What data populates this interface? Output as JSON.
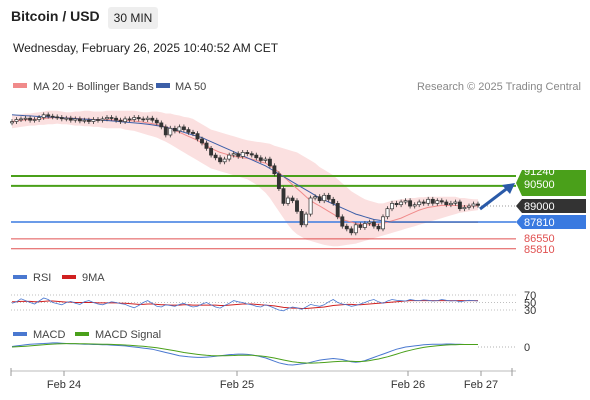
{
  "header": {
    "title": "Bitcoin / USD",
    "timeframe": "30 MIN",
    "datetime": "Wednesday, February 26, 2025 10:40:52 AM CET"
  },
  "legend": {
    "ma20_label": "MA 20 + Bollinger Bands",
    "ma50_label": "MA 50",
    "credit": "Research © 2025 Trading Central"
  },
  "colors": {
    "bollinger_fill": "#fbe0e0",
    "ma20": "#f08a8a",
    "ma50": "#3c5fa8",
    "green_level": "#4aa01a",
    "blue_level": "#3a7ae0",
    "red_level": "#e05050",
    "current_price": "#333333",
    "arrow": "#2a5aa8",
    "rsi": "#4a78d0",
    "rsi_ma": "#d02020",
    "macd": "#4a78d0",
    "macd_signal": "#4aa01a",
    "candle": "#333333"
  },
  "chart_data": [
    {
      "type": "candlestick",
      "name": "price",
      "x_ticks": [
        "Feb 24",
        "Feb 25",
        "Feb 26",
        "Feb 27"
      ],
      "ylim": [
        85000,
        93000
      ],
      "levels": [
        {
          "value": 91240,
          "label": "91240",
          "kind": "resistance",
          "style": "green"
        },
        {
          "value": 90500,
          "label": "90500",
          "kind": "resistance",
          "style": "green"
        },
        {
          "value": 89000,
          "label": "89000",
          "kind": "current",
          "style": "dark"
        },
        {
          "value": 87810,
          "label": "87810",
          "kind": "pivot",
          "style": "blue"
        },
        {
          "value": 86550,
          "label": "86550",
          "kind": "support",
          "style": "red"
        },
        {
          "value": 85810,
          "label": "85810",
          "kind": "support",
          "style": "red"
        }
      ],
      "close": [
        95300,
        95450,
        95500,
        95550,
        95400,
        95450,
        95600,
        95800,
        95700,
        95650,
        95600,
        95500,
        95550,
        95400,
        95500,
        95350,
        95400,
        95300,
        95450,
        95400,
        95500,
        95600,
        95550,
        95400,
        95300,
        95500,
        95450,
        95600,
        95500,
        95450,
        95550,
        95400,
        95200,
        94900,
        94300,
        94800,
        94600,
        94900,
        94700,
        94500,
        94400,
        94000,
        93700,
        93300,
        92800,
        92600,
        92300,
        92500,
        92800,
        92900,
        92700,
        93000,
        92900,
        92800,
        92600,
        92400,
        92500,
        92000,
        91400,
        90300,
        89200,
        89600,
        89400,
        88600,
        87600,
        88400,
        89600,
        89700,
        89400,
        89800,
        89500,
        89200,
        88200,
        87500,
        87300,
        87000,
        87600,
        87400,
        87700,
        87800,
        87500,
        87300,
        88200,
        88800,
        89200,
        89100,
        89300,
        89400,
        89000,
        89100,
        89300,
        89200,
        89500,
        89200,
        89400,
        89300,
        89100,
        89200,
        89300,
        88800,
        88900,
        89000,
        89150,
        89050
      ],
      "bollinger_upper": [
        95800,
        95800,
        95850,
        95900,
        95900,
        95950,
        96000,
        96050,
        96100,
        96100,
        96100,
        96050,
        96000,
        96000,
        96050,
        96050,
        96100,
        96100,
        96050,
        96050,
        96050,
        96100,
        96100,
        96100,
        96100,
        96100,
        96100,
        96100,
        96050,
        96000,
        96000,
        96050,
        96050,
        96000,
        95900,
        95900,
        95800,
        95750,
        95650,
        95600,
        95500,
        95300,
        95100,
        94900,
        94700,
        94600,
        94500,
        94400,
        94300,
        94200,
        94100,
        94000,
        93900,
        93850,
        93800,
        93750,
        93700,
        93650,
        93500,
        93400,
        93300,
        93200,
        93100,
        93000,
        92800,
        92600,
        92400,
        92200,
        91900,
        91700,
        91500,
        91300,
        91000,
        90700,
        90400,
        90100,
        89900,
        89700,
        89500,
        89400,
        89300,
        89200,
        89200,
        89300,
        89400,
        89450,
        89500,
        89550,
        89600,
        89600,
        89650,
        89650,
        89700,
        89700,
        89700,
        89700,
        89700,
        89700,
        89700,
        89600,
        89600,
        89550,
        89500,
        89500
      ],
      "bollinger_lower": [
        94800,
        94850,
        94900,
        94950,
        95000,
        95000,
        95050,
        95050,
        95100,
        95100,
        95150,
        95100,
        95100,
        95050,
        95000,
        95000,
        94950,
        94950,
        94900,
        94900,
        94850,
        94800,
        94800,
        94800,
        94800,
        94700,
        94650,
        94600,
        94500,
        94400,
        94300,
        94200,
        94100,
        93950,
        93800,
        93600,
        93400,
        93200,
        93000,
        92800,
        92600,
        92400,
        92200,
        92000,
        91800,
        91700,
        91600,
        91500,
        91400,
        91300,
        91200,
        91100,
        91000,
        90800,
        90600,
        90300,
        90000,
        89600,
        89100,
        88600,
        88100,
        87600,
        87200,
        86900,
        86700,
        86500,
        86400,
        86300,
        86200,
        86100,
        86050,
        86000,
        86000,
        86050,
        86100,
        86150,
        86200,
        86300,
        86400,
        86500,
        86600,
        86700,
        86800,
        86900,
        87000,
        87100,
        87200,
        87300,
        87400,
        87500,
        87600,
        87700,
        87800,
        87900,
        88000,
        88100,
        88200,
        88300,
        88400,
        88500,
        88550,
        88600,
        88650,
        88700
      ],
      "ma20": [
        95300,
        95350,
        95400,
        95420,
        95450,
        95480,
        95500,
        95530,
        95560,
        95580,
        95600,
        95580,
        95570,
        95560,
        95550,
        95520,
        95500,
        95480,
        95460,
        95450,
        95440,
        95430,
        95420,
        95410,
        95400,
        95380,
        95360,
        95340,
        95300,
        95260,
        95200,
        95150,
        95080,
        95000,
        94900,
        94800,
        94650,
        94500,
        94350,
        94200,
        94050,
        93900,
        93700,
        93500,
        93300,
        93150,
        93000,
        92900,
        92800,
        92700,
        92650,
        92600,
        92550,
        92500,
        92400,
        92300,
        92200,
        92000,
        91800,
        91500,
        91200,
        90900,
        90600,
        90300,
        90000,
        89700,
        89400,
        89200,
        89000,
        88800,
        88600,
        88400,
        88200,
        88000,
        87900,
        87800,
        87700,
        87650,
        87600,
        87600,
        87600,
        87650,
        87700,
        87800,
        87900,
        88000,
        88100,
        88250,
        88400,
        88550,
        88700,
        88800,
        88900,
        88950,
        89000,
        89050,
        89050,
        89050,
        89050,
        89000,
        89000,
        89000,
        89000,
        89000
      ],
      "ma50": [
        95800,
        95780,
        95760,
        95740,
        95720,
        95700,
        95680,
        95660,
        95640,
        95620,
        95600,
        95580,
        95560,
        95540,
        95520,
        95500,
        95480,
        95460,
        95440,
        95420,
        95400,
        95380,
        95350,
        95320,
        95290,
        95260,
        95230,
        95200,
        95170,
        95140,
        95100,
        95050,
        95000,
        94950,
        94880,
        94800,
        94700,
        94600,
        94500,
        94400,
        94300,
        94200,
        94100,
        93950,
        93800,
        93650,
        93500,
        93350,
        93200,
        93050,
        92900,
        92750,
        92600,
        92450,
        92300,
        92150,
        92000,
        91800,
        91600,
        91400,
        91200,
        91000,
        90800,
        90600,
        90400,
        90200,
        90000,
        89800,
        89600,
        89450,
        89300,
        89150,
        89000,
        88850,
        88700,
        88550,
        88400,
        88300,
        88200,
        88100,
        88000,
        87950,
        87900,
        87850,
        87800,
        87800,
        87800,
        87800,
        87800,
        87800,
        87800,
        87800,
        87800,
        87800,
        87800,
        87800,
        87800,
        87800,
        87800,
        87800,
        87800,
        87800,
        87800,
        87800
      ]
    },
    {
      "type": "line",
      "name": "rsi",
      "legend": [
        "RSI",
        "9MA"
      ],
      "ylim": [
        20,
        80
      ],
      "levels": [
        70,
        50,
        30
      ],
      "level_labels": [
        "70",
        "50",
        "30"
      ],
      "rsi": [
        48,
        52,
        60,
        55,
        50,
        46,
        54,
        62,
        58,
        50,
        47,
        44,
        50,
        53,
        48,
        45,
        52,
        55,
        50,
        46,
        44,
        48,
        52,
        50,
        47,
        45,
        40,
        36,
        42,
        50,
        55,
        48,
        40,
        38,
        44,
        42,
        40,
        45,
        48,
        42,
        38,
        40,
        46,
        50,
        44,
        38,
        35,
        42,
        48,
        55,
        52,
        50,
        46,
        44,
        40,
        38,
        44,
        40,
        35,
        30,
        28,
        34,
        38,
        36,
        32,
        38,
        45,
        42,
        40,
        44,
        52,
        58,
        50,
        46,
        44,
        40,
        42,
        46,
        50,
        55,
        58,
        52,
        48,
        54,
        58,
        56,
        55,
        54,
        58,
        56,
        55,
        57,
        56,
        54,
        55,
        58,
        56,
        54,
        55,
        52,
        54,
        56,
        55,
        54
      ],
      "rsi_ma": [
        52,
        52,
        53,
        53,
        53,
        52,
        52,
        53,
        54,
        54,
        53,
        52,
        51,
        51,
        50,
        50,
        50,
        50,
        50,
        49,
        49,
        49,
        49,
        49,
        48,
        48,
        47,
        46,
        45,
        45,
        46,
        46,
        45,
        44,
        44,
        43,
        43,
        43,
        44,
        44,
        43,
        43,
        43,
        43,
        43,
        43,
        42,
        42,
        43,
        44,
        45,
        46,
        46,
        46,
        45,
        44,
        43,
        42,
        41,
        39,
        37,
        36,
        35,
        35,
        34,
        34,
        35,
        36,
        37,
        38,
        40,
        42,
        43,
        44,
        45,
        45,
        44,
        44,
        45,
        46,
        47,
        48,
        49,
        50,
        51,
        52,
        53,
        54,
        55,
        55,
        55,
        55,
        55,
        55,
        55,
        55,
        55,
        55,
        55,
        55,
        55,
        55,
        55,
        55
      ]
    },
    {
      "type": "line",
      "name": "macd",
      "legend": [
        "MACD",
        "MACD Signal"
      ],
      "level_labels": [
        "0"
      ],
      "ylim": [
        -1000,
        400
      ],
      "macd": [
        20,
        40,
        60,
        80,
        100,
        110,
        120,
        130,
        140,
        150,
        150,
        140,
        130,
        120,
        120,
        110,
        100,
        100,
        90,
        90,
        80,
        80,
        70,
        60,
        50,
        40,
        20,
        0,
        -20,
        -40,
        -60,
        -80,
        -120,
        -160,
        -200,
        -240,
        -280,
        -320,
        -340,
        -360,
        -370,
        -380,
        -380,
        -370,
        -360,
        -340,
        -320,
        -300,
        -280,
        -270,
        -260,
        -260,
        -270,
        -290,
        -320,
        -360,
        -400,
        -460,
        -520,
        -580,
        -620,
        -650,
        -660,
        -640,
        -620,
        -600,
        -560,
        -520,
        -480,
        -460,
        -440,
        -420,
        -440,
        -460,
        -500,
        -540,
        -560,
        -540,
        -500,
        -440,
        -380,
        -320,
        -260,
        -200,
        -140,
        -80,
        -40,
        0,
        20,
        40,
        60,
        80,
        90,
        100,
        100,
        100,
        110,
        110,
        100,
        100,
        90,
        90,
        90,
        90
      ],
      "macd_signal": [
        0,
        10,
        20,
        30,
        40,
        55,
        70,
        85,
        95,
        105,
        115,
        120,
        125,
        125,
        125,
        122,
        118,
        115,
        110,
        106,
        102,
        98,
        94,
        88,
        82,
        74,
        64,
        52,
        38,
        24,
        8,
        -8,
        -30,
        -55,
        -80,
        -110,
        -140,
        -170,
        -200,
        -225,
        -250,
        -270,
        -290,
        -305,
        -315,
        -320,
        -322,
        -320,
        -315,
        -310,
        -305,
        -300,
        -300,
        -305,
        -315,
        -330,
        -350,
        -375,
        -405,
        -440,
        -475,
        -510,
        -540,
        -560,
        -575,
        -585,
        -590,
        -588,
        -580,
        -568,
        -555,
        -540,
        -530,
        -524,
        -522,
        -525,
        -530,
        -530,
        -520,
        -500,
        -470,
        -440,
        -400,
        -360,
        -310,
        -260,
        -210,
        -160,
        -120,
        -80,
        -45,
        -15,
        10,
        30,
        45,
        60,
        72,
        80,
        86,
        90,
        92,
        93,
        93,
        93
      ]
    }
  ]
}
